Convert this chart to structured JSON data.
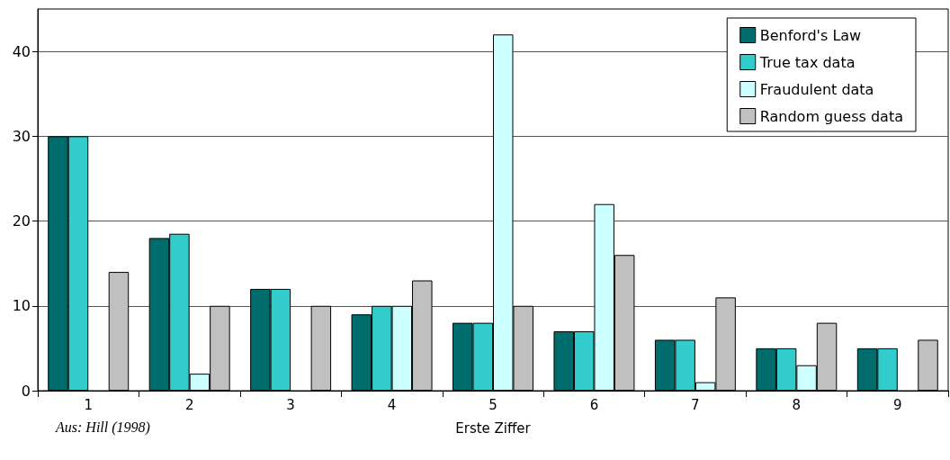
{
  "chart_data": {
    "type": "bar",
    "xlabel": "Erste Ziffer",
    "annotations": [
      "Aus: Hill (1998)"
    ],
    "categories": [
      "1",
      "2",
      "3",
      "4",
      "5",
      "6",
      "7",
      "8",
      "9"
    ],
    "series": [
      {
        "name": "Benford's Law",
        "color": "#006c6c",
        "values": [
          30,
          18,
          12,
          9,
          8,
          7,
          6,
          5,
          5
        ]
      },
      {
        "name": "True tax data",
        "color": "#33cccc",
        "values": [
          30,
          18.5,
          12,
          10,
          8,
          7,
          6,
          5,
          5
        ]
      },
      {
        "name": "Fraudulent data",
        "color": "#ccffff",
        "values": [
          null,
          2,
          null,
          10,
          42,
          22,
          1,
          3,
          null
        ]
      },
      {
        "name": "Random guess data",
        "color": "#c0c0c0",
        "values": [
          14,
          10,
          10,
          13,
          10,
          16,
          11,
          8,
          6
        ]
      }
    ],
    "ylim": [
      0,
      45
    ],
    "yticks": [
      0,
      10,
      20,
      30,
      40
    ],
    "grid": "y",
    "legend": "top right"
  }
}
